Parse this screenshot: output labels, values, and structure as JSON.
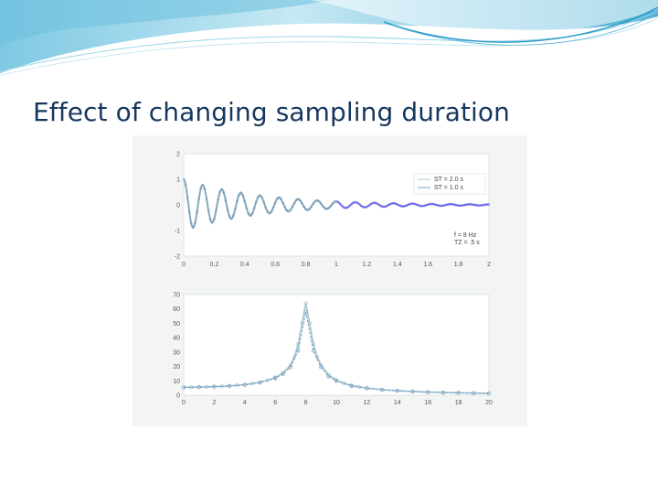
{
  "slide": {
    "title": "Effect of changing sampling duration"
  },
  "colors": {
    "title": "#17375e",
    "banner_light": "#d8f0f7",
    "banner_mid": "#8fd0e6",
    "banner_dark": "#3aa6cf",
    "series_st2": "#7aa0c8",
    "series_st1": "#a8c8c8",
    "series_fade": "#4a4ae0"
  },
  "chart_data": [
    {
      "type": "line",
      "title": "",
      "xlabel": "",
      "ylabel": "",
      "xlim": [
        0,
        2
      ],
      "ylim": [
        -2,
        2
      ],
      "x_ticks": [
        "0",
        "0.2",
        "0.4",
        "0.6",
        "0.8",
        "1",
        "1.2",
        "1.4",
        "1.6",
        "1.8",
        "2"
      ],
      "y_ticks": [
        "2",
        "1",
        "0",
        "-1",
        "-2"
      ],
      "legend_position": "top-right",
      "legend": [
        "ST = 2.0 s",
        "ST = 1.0 s"
      ],
      "annotations": [
        "f = 8 Hz",
        "TZ = .5 s"
      ],
      "signal": {
        "frequency_hz": 8,
        "decay_constant_s": 0.5,
        "amplitude": 1.0
      },
      "series": [
        {
          "name": "ST = 2.0 s",
          "x_range": [
            0,
            2.0
          ]
        },
        {
          "name": "ST = 1.0 s",
          "x_range": [
            0,
            1.0
          ]
        }
      ]
    },
    {
      "type": "line",
      "title": "",
      "xlabel": "",
      "ylabel": "",
      "xlim": [
        0,
        20
      ],
      "ylim": [
        0,
        70
      ],
      "x_ticks": [
        "0",
        "2",
        "4",
        "6",
        "8",
        "10",
        "12",
        "14",
        "16",
        "18",
        "20"
      ],
      "y_ticks": [
        "70",
        "60",
        "50",
        "40",
        "30",
        "20",
        "10",
        "0"
      ],
      "series": [
        {
          "name": "ST = 2.0 s",
          "x": [
            0,
            0.5,
            1,
            1.5,
            2,
            2.5,
            3,
            3.5,
            4,
            4.5,
            5,
            5.5,
            6,
            6.5,
            7,
            7.25,
            7.5,
            7.75,
            8,
            8.25,
            8.5,
            8.75,
            9,
            9.5,
            10,
            10.5,
            11,
            11.5,
            12,
            13,
            14,
            15,
            16,
            17,
            18,
            19,
            20
          ],
          "values": [
            5.5,
            5.6,
            5.7,
            5.8,
            6.0,
            6.2,
            6.5,
            6.9,
            7.4,
            8.1,
            9.0,
            10.4,
            12.3,
            15.4,
            21.0,
            26.5,
            35.5,
            50.0,
            64.0,
            50.0,
            35.5,
            26.5,
            21.0,
            14.0,
            10.5,
            8.3,
            6.8,
            5.8,
            5.0,
            3.9,
            3.1,
            2.6,
            2.2,
            1.9,
            1.7,
            1.5,
            1.3
          ]
        },
        {
          "name": "ST = 1.0 s",
          "x": [
            0,
            1,
            2,
            3,
            4,
            5,
            6,
            6.5,
            7,
            7.5,
            8,
            8.5,
            9,
            9.5,
            10,
            11,
            12,
            13,
            14,
            15,
            16,
            17,
            18,
            19,
            20
          ],
          "values": [
            5.4,
            5.6,
            5.9,
            6.4,
            7.2,
            8.8,
            11.8,
            14.8,
            19.5,
            31.0,
            58.0,
            31.0,
            19.5,
            13.0,
            10.0,
            6.4,
            4.8,
            3.7,
            3.0,
            2.5,
            2.1,
            1.8,
            1.6,
            1.4,
            1.2
          ]
        }
      ]
    }
  ]
}
